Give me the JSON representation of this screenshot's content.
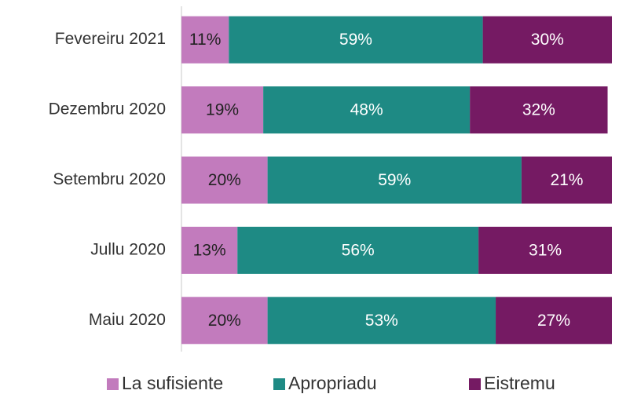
{
  "chart_data": {
    "type": "stacked_bar",
    "orientation": "horizontal",
    "categories": [
      "Fevereiru 2021",
      "Dezembru 2020",
      "Setembru 2020",
      "Jullu 2020",
      "Maiu 2020"
    ],
    "series": [
      {
        "name": "La sufisiente",
        "color": "#c27bbd",
        "values": [
          11,
          19,
          20,
          13,
          20
        ],
        "value_labels": [
          "11%",
          "19%",
          "20%",
          "13%",
          "20%"
        ]
      },
      {
        "name": "Apropriadu",
        "color": "#1e8a84",
        "values": [
          59,
          48,
          59,
          56,
          53
        ],
        "value_labels": [
          "59%",
          "48%",
          "59%",
          "56%",
          "53%"
        ]
      },
      {
        "name": "Eistremu",
        "color": "#751a63",
        "values": [
          30,
          32,
          21,
          31,
          27
        ],
        "value_labels": [
          "30%",
          "32%",
          "21%",
          "31%",
          "27%"
        ]
      }
    ],
    "xlim": [
      0,
      100
    ],
    "legend": "bottom"
  }
}
